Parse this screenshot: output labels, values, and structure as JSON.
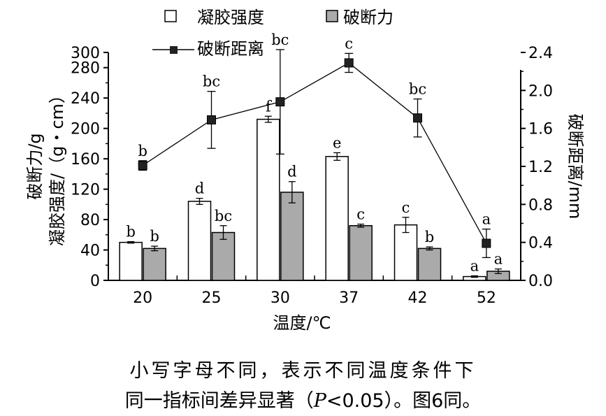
{
  "chart_data": {
    "type": "bar",
    "categories": [
      "20",
      "25",
      "30",
      "37",
      "42",
      "52"
    ],
    "xlabel": "温度/℃",
    "ylabel_left_line1": "破断力/g",
    "ylabel_left_line2": "凝胶强度/（g・cm）",
    "ylabel_right": "破断距离/mm",
    "ylim": [
      0,
      300
    ],
    "y2lim": [
      0,
      2.4
    ],
    "yticks": [
      "0",
      "40",
      "80",
      "120",
      "160",
      "200",
      "240",
      "280",
      "300"
    ],
    "y2ticks": [
      "0.0",
      "0.4",
      "0.8",
      "1.2",
      "1.6",
      "2.0",
      "2.4"
    ],
    "series": [
      {
        "name": "凝胶强度",
        "type": "bar",
        "fill": "#ffffff",
        "values": [
          50,
          104,
          212,
          163,
          73,
          5
        ],
        "errors": [
          1,
          4,
          4,
          5,
          10,
          1
        ],
        "letters": [
          "b",
          "d",
          "f",
          "e",
          "c",
          "a"
        ]
      },
      {
        "name": "破断力",
        "type": "bar",
        "fill": "#aaaaaa",
        "values": [
          42,
          63,
          116,
          72,
          42,
          12
        ],
        "errors": [
          3,
          9,
          14,
          2,
          2,
          3
        ],
        "letters": [
          "b",
          "bc",
          "d",
          "c",
          "b",
          "a"
        ]
      },
      {
        "name": "破断距离",
        "type": "line",
        "axis": "right",
        "values": [
          1.21,
          1.69,
          1.88,
          2.29,
          1.71,
          0.39
        ],
        "errors": [
          0.05,
          0.3,
          0.55,
          0.1,
          0.2,
          0.15
        ],
        "letters": [
          "b",
          "bc",
          "bc",
          "c",
          "bc",
          "a"
        ]
      }
    ],
    "legend_position": "top"
  },
  "note": {
    "line1": "小写字母不同，表示不同温度条件下",
    "line2_prefix": "同一指标间差异显著（",
    "line2_p": "P",
    "line2_suffix": "<0.05）。图6同。"
  }
}
